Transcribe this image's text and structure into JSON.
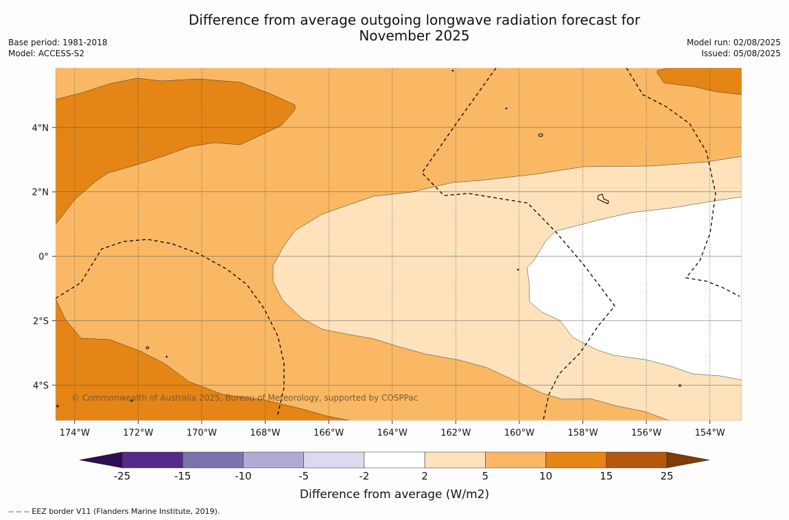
{
  "title_line1": "Difference from average outgoing longwave radiation forecast for",
  "title_line2": "November 2025",
  "base_period": "Base period: 1981-2018",
  "model": "Model: ACCESS-S2",
  "model_run": "Model run: 02/08/2025",
  "issued": "Issued: 05/08/2025",
  "copyright": "© Commonwealth of Australia 2025, Bureau of Meteorology, supported by COSPPac",
  "map_extent": {
    "lon": [
      -174.6,
      -153.0
    ],
    "lat": [
      -5.1,
      5.85
    ]
  },
  "lon_ticks": [
    {
      "value": -174,
      "label": "174°W"
    },
    {
      "value": -172,
      "label": "172°W"
    },
    {
      "value": -170,
      "label": "170°W"
    },
    {
      "value": -168,
      "label": "168°W"
    },
    {
      "value": -166,
      "label": "166°W"
    },
    {
      "value": -164,
      "label": "164°W"
    },
    {
      "value": -162,
      "label": "162°W"
    },
    {
      "value": -160,
      "label": "160°W"
    },
    {
      "value": -158,
      "label": "158°W"
    },
    {
      "value": -156,
      "label": "156°W"
    },
    {
      "value": -154,
      "label": "154°W"
    }
  ],
  "lat_ticks": [
    {
      "value": 4,
      "label": "4°N"
    },
    {
      "value": 2,
      "label": "2°N"
    },
    {
      "value": 0,
      "label": "0°"
    },
    {
      "value": -2,
      "label": "2°S"
    },
    {
      "value": -4,
      "label": "4°S"
    }
  ],
  "legend": {
    "label": "Difference from average (W/m2)",
    "ticks": [
      "-25",
      "-15",
      "-10",
      "-5",
      "-2",
      "2",
      "5",
      "10",
      "15",
      "25"
    ],
    "colors": [
      "#2d0f52",
      "#552a8a",
      "#7e72ad",
      "#b3aad4",
      "#dcdaef",
      "#ffffff",
      "#fde2bc",
      "#fab864",
      "#e48516",
      "#b5570d",
      "#7f3b08"
    ]
  },
  "footer": "--  --  -- EEZ border V11 (Flanders Marine Institute, 2019)."
}
